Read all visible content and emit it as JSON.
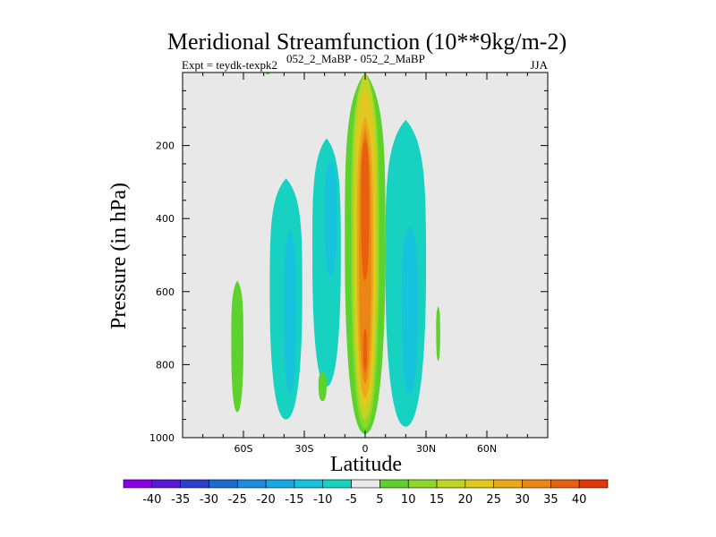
{
  "chart_data": {
    "type": "heatmap",
    "title": "Meridional Streamfunction (10**9kg/m-2)",
    "subtitle_left": "Expt = teydk-texpk2",
    "subtitle_superscript": "052_2_MaBP - 052_2_MaBP",
    "season": "JJA",
    "xlabel": "Latitude",
    "ylabel": "Pressure (in hPa)",
    "xlim": [
      -90,
      90
    ],
    "ylim": [
      1000,
      0
    ],
    "xticks": [
      {
        "value": -60,
        "label": "60S"
      },
      {
        "value": -30,
        "label": "30S"
      },
      {
        "value": 0,
        "label": "0"
      },
      {
        "value": 30,
        "label": "30N"
      },
      {
        "value": 60,
        "label": "60N"
      }
    ],
    "yticks": [
      {
        "value": 200,
        "label": "200"
      },
      {
        "value": 400,
        "label": "400"
      },
      {
        "value": 600,
        "label": "600"
      },
      {
        "value": 800,
        "label": "800"
      },
      {
        "value": 1000,
        "label": "1000"
      }
    ],
    "background_color": "#e8e8e8",
    "colorbar": {
      "colors": [
        "#8a00e6",
        "#5a18d8",
        "#2d3ec8",
        "#1a6ad0",
        "#1a8de0",
        "#17a9e6",
        "#17c2dc",
        "#17d2c0",
        "#e8e8e8",
        "#5ed22c",
        "#8cd828",
        "#c0d426",
        "#e2c81e",
        "#eaa81a",
        "#ea8614",
        "#e6600e",
        "#e03808"
      ],
      "labels": [
        "-40",
        "-35",
        "-30",
        "-25",
        "-20",
        "-15",
        "-10",
        "-5",
        "5",
        "10",
        "15",
        "20",
        "25",
        "30",
        "35",
        "40"
      ]
    },
    "regions": [
      {
        "name": "cell-60s",
        "level": 10,
        "lat_ctr": -63,
        "p_top": 570,
        "p_bot": 930,
        "half_width": 3
      },
      {
        "name": "cell-45s-outer",
        "level": -5,
        "lat_ctr": -39,
        "p_top": 290,
        "p_bot": 950,
        "half_width": 8
      },
      {
        "name": "cell-45s-inner",
        "level": -10,
        "lat_ctr": -37,
        "p_top": 430,
        "p_bot": 880,
        "half_width": 3
      },
      {
        "name": "cell-20s-outer",
        "level": -5,
        "lat_ctr": -19,
        "p_top": 180,
        "p_bot": 860,
        "half_width": 7
      },
      {
        "name": "cell-20s-inner",
        "level": -10,
        "lat_ctr": -17,
        "p_top": 240,
        "p_bot": 560,
        "half_width": 3
      },
      {
        "name": "cell-20s-patch",
        "level": 10,
        "lat_ctr": -21,
        "p_top": 820,
        "p_bot": 900,
        "half_width": 2
      },
      {
        "name": "cell-20n-outer",
        "level": -5,
        "lat_ctr": 20,
        "p_top": 130,
        "p_bot": 970,
        "half_width": 10
      },
      {
        "name": "cell-20n-inner",
        "level": -10,
        "lat_ctr": 22,
        "p_top": 420,
        "p_bot": 880,
        "half_width": 4
      },
      {
        "name": "cell-36n",
        "level": 10,
        "lat_ctr": 36,
        "p_top": 640,
        "p_bot": 790,
        "half_width": 1
      },
      {
        "name": "cell-top-tick",
        "level": 10,
        "lat_ctr": -48,
        "p_top": 0,
        "p_bot": 5,
        "half_width": 1
      },
      {
        "name": "hadley-10",
        "level": 10,
        "lat_ctr": 0,
        "p_top": 0,
        "p_bot": 990,
        "half_width": 10
      },
      {
        "name": "hadley-15",
        "level": 15,
        "lat_ctr": 0,
        "p_top": 0,
        "p_bot": 975,
        "half_width": 7
      },
      {
        "name": "hadley-20",
        "level": 20,
        "lat_ctr": 0,
        "p_top": 0,
        "p_bot": 950,
        "half_width": 6
      },
      {
        "name": "hadley-25",
        "level": 25,
        "lat_ctr": 0,
        "p_top": 40,
        "p_bot": 920,
        "half_width": 5
      },
      {
        "name": "hadley-30",
        "level": 30,
        "lat_ctr": 0,
        "p_top": 120,
        "p_bot": 890,
        "half_width": 4
      },
      {
        "name": "hadley-35",
        "level": 35,
        "lat_ctr": 0,
        "p_top": 150,
        "p_bot": 850,
        "half_width": 3
      },
      {
        "name": "hadley-40-upper",
        "level": 40,
        "lat_ctr": 0,
        "p_top": 180,
        "p_bot": 570,
        "half_width": 2
      },
      {
        "name": "hadley-40-lower",
        "level": 40,
        "lat_ctr": 0,
        "p_top": 700,
        "p_bot": 820,
        "half_width": 1
      }
    ]
  }
}
